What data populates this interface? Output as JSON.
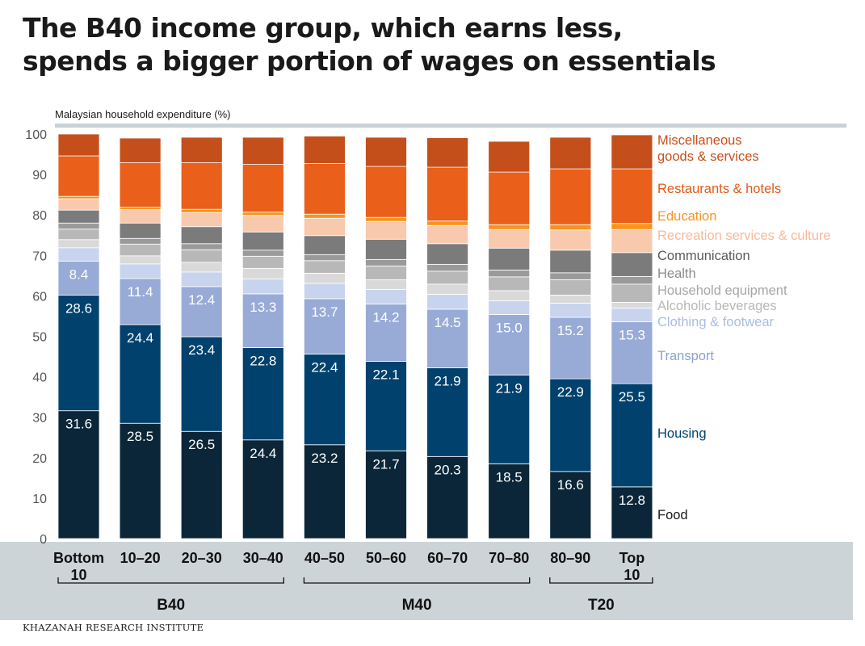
{
  "title_lines": [
    "The B40 income group, which earns less,",
    "spends a bigger portion of wages on essentials"
  ],
  "source": "KHAZANAH RESEARCH INSTITUTE",
  "chart_data": {
    "type": "bar",
    "stacked": true,
    "ylabel": "Malaysian household expenditure (%)",
    "ylim": [
      0,
      100
    ],
    "yticks": [
      0,
      10,
      20,
      30,
      40,
      50,
      60,
      70,
      80,
      90,
      100
    ],
    "categories": [
      "Bottom 10",
      "10–20",
      "20–30",
      "30–40",
      "40–50",
      "50–60",
      "60–70",
      "70–80",
      "80–90",
      "Top 10"
    ],
    "groups": [
      {
        "label": "B40",
        "from": 0,
        "to": 3
      },
      {
        "label": "M40",
        "from": 4,
        "to": 7
      },
      {
        "label": "T20",
        "from": 8,
        "to": 9
      }
    ],
    "legend_placement": "right",
    "series": [
      {
        "name": "Food",
        "color": "#0b2638",
        "label_color": "#1a1a1a",
        "show_values": true,
        "values": [
          31.6,
          28.5,
          26.5,
          24.4,
          23.2,
          21.7,
          20.3,
          18.5,
          16.6,
          12.8
        ]
      },
      {
        "name": "Housing",
        "color": "#00416d",
        "label_color": "#00416d",
        "show_values": true,
        "values": [
          28.6,
          24.4,
          23.4,
          22.8,
          22.4,
          22.1,
          21.9,
          21.9,
          22.9,
          25.5
        ]
      },
      {
        "name": "Transport",
        "color": "#98abd6",
        "label_color": "#8aa2d0",
        "show_values": true,
        "values": [
          8.4,
          11.4,
          12.4,
          13.3,
          13.7,
          14.2,
          14.5,
          15.0,
          15.2,
          15.3
        ]
      },
      {
        "name": "Clothing & footwear",
        "color": "#c8d4ee",
        "label_color": "#a9bde3",
        "show_values": false,
        "values": [
          3.3,
          3.6,
          3.6,
          3.7,
          3.8,
          3.6,
          3.7,
          3.4,
          3.5,
          3.4
        ]
      },
      {
        "name": "Alcoholic beverages",
        "color": "#d9d9d9",
        "label_color": "#b8b8b8",
        "show_values": false,
        "values": [
          2.0,
          2.0,
          2.4,
          2.6,
          2.5,
          2.4,
          2.5,
          2.5,
          2.0,
          1.4
        ]
      },
      {
        "name": "Household equipment",
        "color": "#b8b8b8",
        "label_color": "#a6a6a6",
        "show_values": false,
        "values": [
          2.6,
          2.9,
          3.1,
          3.0,
          3.1,
          3.4,
          3.2,
          3.4,
          3.8,
          4.5
        ]
      },
      {
        "name": "Health",
        "color": "#9a9a9a",
        "label_color": "#8c8c8c",
        "show_values": false,
        "values": [
          1.5,
          1.4,
          1.5,
          1.5,
          1.5,
          1.6,
          1.7,
          1.7,
          1.7,
          1.9
        ]
      },
      {
        "name": "Communication",
        "color": "#7b7b7b",
        "label_color": "#5a5a5a",
        "show_values": false,
        "values": [
          3.2,
          3.8,
          4.2,
          4.5,
          4.7,
          5.0,
          5.1,
          5.4,
          5.6,
          5.9
        ]
      },
      {
        "name": "Recreation services & culture",
        "color": "#f9c9ad",
        "label_color": "#f7b999",
        "show_values": false,
        "values": [
          2.8,
          3.3,
          3.5,
          4.1,
          4.3,
          4.4,
          4.5,
          4.6,
          5.0,
          5.7
        ]
      },
      {
        "name": "Education",
        "color": "#f7941d",
        "label_color": "#f7941d",
        "show_values": false,
        "values": [
          0.6,
          0.6,
          0.8,
          0.8,
          1.0,
          1.0,
          1.1,
          1.2,
          1.3,
          1.5
        ]
      },
      {
        "name": "Restaurants & hotels",
        "color": "#ea5f1a",
        "label_color": "#e05a18",
        "show_values": false,
        "values": [
          10.0,
          11.0,
          11.5,
          11.8,
          12.5,
          12.6,
          13.3,
          13.0,
          13.8,
          13.5
        ]
      },
      {
        "name": "Miscellaneous goods & services",
        "color": "#c44f1b",
        "label_color": "#c4501b",
        "legend_lines": [
          "Miscellaneous",
          "goods & services"
        ],
        "show_values": false,
        "values": [
          5.4,
          6.1,
          6.3,
          6.7,
          6.8,
          7.2,
          7.3,
          7.6,
          7.8,
          8.4
        ]
      }
    ]
  }
}
